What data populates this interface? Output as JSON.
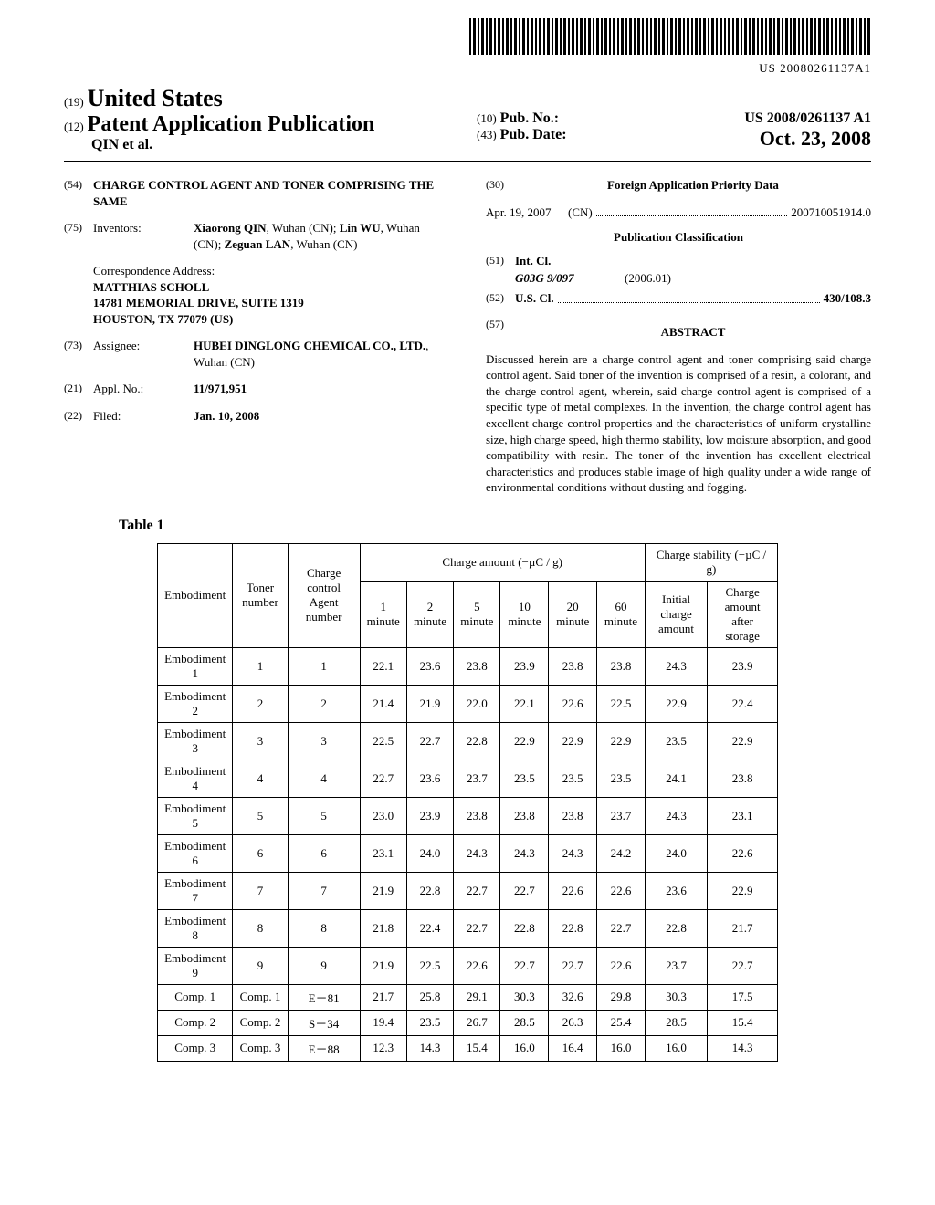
{
  "barcode_label": "US 20080261137A1",
  "header": {
    "country_num": "(19)",
    "country": "United States",
    "kind_num": "(12)",
    "kind": "Patent Application Publication",
    "authors": "QIN et al.",
    "pub_no_num": "(10)",
    "pub_no_label": "Pub. No.:",
    "pub_no": "US 2008/0261137 A1",
    "pub_date_num": "(43)",
    "pub_date_label": "Pub. Date:",
    "pub_date": "Oct. 23, 2008"
  },
  "title_num": "(54)",
  "title": "CHARGE CONTROL AGENT AND TONER COMPRISING THE SAME",
  "inventors_num": "(75)",
  "inventors_label": "Inventors:",
  "inventors_line1": "Xiaorong QIN",
  "inventors_line1b": ", Wuhan (CN); ",
  "inventors_line2": "Lin WU",
  "inventors_line2b": ", Wuhan (CN); ",
  "inventors_line3": "Zeguan LAN",
  "inventors_line3b": ", Wuhan (CN)",
  "corr_label": "Correspondence Address:",
  "corr_name": "MATTHIAS SCHOLL",
  "corr_street": "14781 MEMORIAL DRIVE, SUITE 1319",
  "corr_city": "HOUSTON, TX 77079 (US)",
  "assignee_num": "(73)",
  "assignee_label": "Assignee:",
  "assignee_val": "HUBEI DINGLONG CHEMICAL CO., LTD.",
  "assignee_loc": ", Wuhan (CN)",
  "appl_num": "(21)",
  "appl_label": "Appl. No.:",
  "appl_val": "11/971,951",
  "filed_num": "(22)",
  "filed_label": "Filed:",
  "filed_val": "Jan. 10, 2008",
  "foreign_num": "(30)",
  "foreign_title": "Foreign Application Priority Data",
  "foreign_date": "Apr. 19, 2007",
  "foreign_cc": "(CN)",
  "foreign_app": "200710051914.0",
  "pubclass_title": "Publication Classification",
  "intcl_num": "(51)",
  "intcl_label": "Int. Cl.",
  "intcl_code": "G03G 9/097",
  "intcl_ver": "(2006.01)",
  "uscl_num": "(52)",
  "uscl_label": "U.S. Cl.",
  "uscl_val": "430/108.3",
  "abstract_num": "(57)",
  "abstract_label": "ABSTRACT",
  "abstract_body": "Discussed herein are a charge control agent and toner comprising said charge control agent. Said toner of the invention is comprised of a resin, a colorant, and the charge control agent, wherein, said charge control agent is comprised of a specific type of metal complexes. In the invention, the charge control agent has excellent charge control properties and the characteristics of uniform crystalline size, high charge speed, high thermo stability, low moisture absorption, and good compatibility with resin. The toner of the invention has excellent electrical characteristics and produces stable image of high quality under a wide range of environmental conditions without dusting and fogging.",
  "table": {
    "caption": "Table 1",
    "cols": {
      "c1": "Embodiment",
      "c2": "Toner number",
      "c3": "Charge control Agent number",
      "group1": "Charge amount  (−µC / g)",
      "m1": "1 minute",
      "m2": "2 minute",
      "m5": "5 minute",
      "m10": "10 minute",
      "m20": "20 minute",
      "m60": "60 minute",
      "group2": "Charge stability (−µC / g)",
      "s1": "Initial charge amount",
      "s2": "Charge amount after storage"
    },
    "rows": [
      [
        "Embodiment 1",
        "1",
        "1",
        "22.1",
        "23.6",
        "23.8",
        "23.9",
        "23.8",
        "23.8",
        "24.3",
        "23.9"
      ],
      [
        "Embodiment 2",
        "2",
        "2",
        "21.4",
        "21.9",
        "22.0",
        "22.1",
        "22.6",
        "22.5",
        "22.9",
        "22.4"
      ],
      [
        "Embodiment 3",
        "3",
        "3",
        "22.5",
        "22.7",
        "22.8",
        "22.9",
        "22.9",
        "22.9",
        "23.5",
        "22.9"
      ],
      [
        "Embodiment 4",
        "4",
        "4",
        "22.7",
        "23.6",
        "23.7",
        "23.5",
        "23.5",
        "23.5",
        "24.1",
        "23.8"
      ],
      [
        "Embodiment 5",
        "5",
        "5",
        "23.0",
        "23.9",
        "23.8",
        "23.8",
        "23.8",
        "23.7",
        "24.3",
        "23.1"
      ],
      [
        "Embodiment 6",
        "6",
        "6",
        "23.1",
        "24.0",
        "24.3",
        "24.3",
        "24.3",
        "24.2",
        "24.0",
        "22.6"
      ],
      [
        "Embodiment 7",
        "7",
        "7",
        "21.9",
        "22.8",
        "22.7",
        "22.7",
        "22.6",
        "22.6",
        "23.6",
        "22.9"
      ],
      [
        "Embodiment 8",
        "8",
        "8",
        "21.8",
        "22.4",
        "22.7",
        "22.8",
        "22.8",
        "22.7",
        "22.8",
        "21.7"
      ],
      [
        "Embodiment 9",
        "9",
        "9",
        "21.9",
        "22.5",
        "22.6",
        "22.7",
        "22.7",
        "22.6",
        "23.7",
        "22.7"
      ],
      [
        "Comp. 1",
        "Comp. 1",
        "E－81",
        "21.7",
        "25.8",
        "29.1",
        "30.3",
        "32.6",
        "29.8",
        "30.3",
        "17.5"
      ],
      [
        "Comp. 2",
        "Comp. 2",
        "S－34",
        "19.4",
        "23.5",
        "26.7",
        "28.5",
        "26.3",
        "25.4",
        "28.5",
        "15.4"
      ],
      [
        "Comp. 3",
        "Comp. 3",
        "E－88",
        "12.3",
        "14.3",
        "15.4",
        "16.0",
        "16.4",
        "16.0",
        "16.0",
        "14.3"
      ]
    ]
  }
}
